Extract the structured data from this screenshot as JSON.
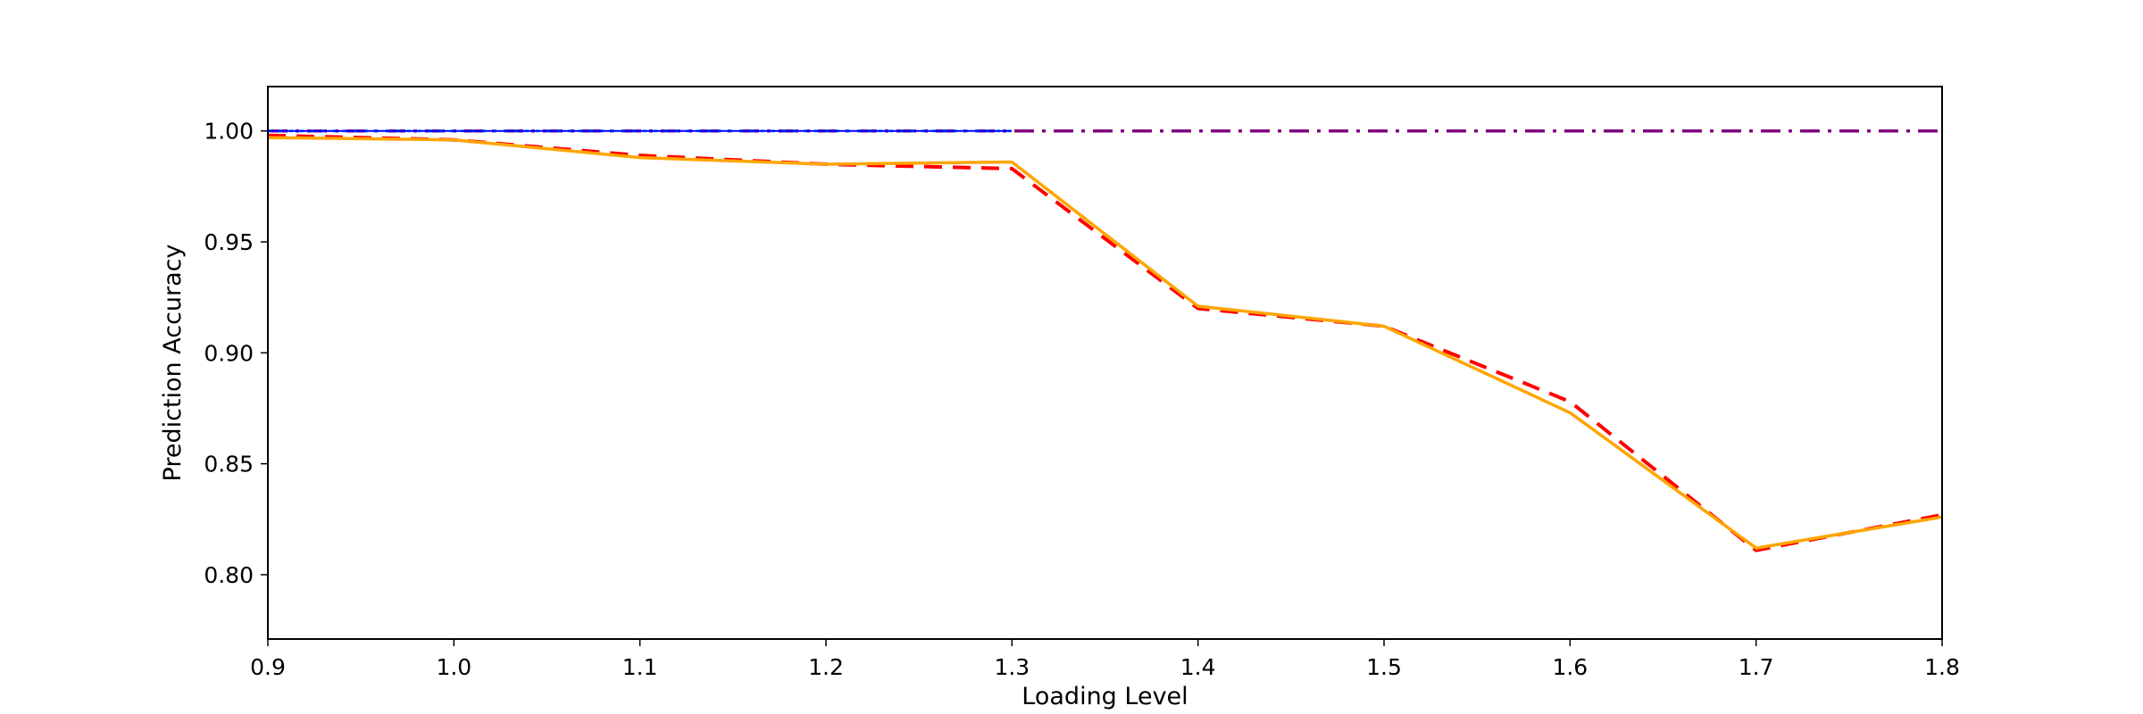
{
  "chart_data": {
    "type": "line",
    "title": "",
    "xlabel": "Loading Level",
    "ylabel": "Prediction Accuracy",
    "xlim": [
      0.9,
      1.8
    ],
    "ylim": [
      0.771,
      1.02
    ],
    "grid": false,
    "legend": "none",
    "x_ticks": [
      "0.9",
      "1.0",
      "1.1",
      "1.2",
      "1.3",
      "1.4",
      "1.5",
      "1.6",
      "1.7",
      "1.8"
    ],
    "y_ticks": [
      "0.80",
      "0.85",
      "0.90",
      "0.95",
      "1.00"
    ],
    "series": [
      {
        "style": "dashdot",
        "color": "#800080",
        "x": [
          0.9,
          1.0,
          1.1,
          1.2,
          1.3,
          1.4,
          1.5,
          1.6,
          1.7,
          1.8
        ],
        "y": [
          1.0,
          1.0,
          1.0,
          1.0,
          1.0,
          1.0,
          1.0,
          1.0,
          1.0,
          1.0
        ]
      },
      {
        "style": "dotted",
        "color": "#00bfff",
        "x": [
          0.9,
          1.0,
          1.1,
          1.2,
          1.3
        ],
        "y": [
          1.0,
          1.0,
          1.0,
          1.0,
          1.0
        ]
      },
      {
        "style": "solid-thin",
        "color": "#0000ff",
        "x": [
          0.9,
          1.0,
          1.1,
          1.2,
          1.3
        ],
        "y": [
          1.0,
          1.0,
          1.0,
          1.0,
          1.0
        ]
      },
      {
        "style": "dashed",
        "color": "#ff0000",
        "x": [
          0.9,
          1.0,
          1.1,
          1.2,
          1.3,
          1.4,
          1.5,
          1.6,
          1.7,
          1.8
        ],
        "y": [
          0.998,
          0.996,
          0.989,
          0.985,
          0.983,
          0.92,
          0.912,
          0.878,
          0.811,
          0.827
        ]
      },
      {
        "style": "solid",
        "color": "#ffa500",
        "x": [
          0.9,
          1.0,
          1.1,
          1.2,
          1.3,
          1.4,
          1.5,
          1.6,
          1.7,
          1.8
        ],
        "y": [
          0.997,
          0.996,
          0.988,
          0.985,
          0.986,
          0.921,
          0.912,
          0.873,
          0.812,
          0.826
        ]
      }
    ]
  }
}
